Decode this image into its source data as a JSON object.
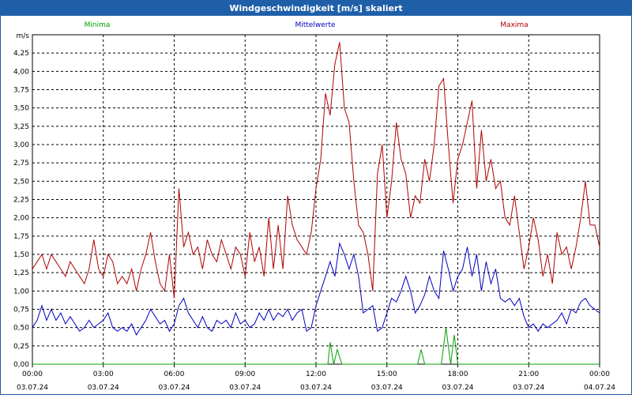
{
  "window": {
    "title": "Windgeschwindigkeit [m/s] skaliert"
  },
  "colors": {
    "minima": "#00a000",
    "mittel": "#0000c0",
    "maxima": "#b00000",
    "grid": "#000000",
    "title_bar": "#1f5fa8"
  },
  "chart_data": {
    "type": "line",
    "ylabel": "m/s",
    "ylim": [
      0,
      4.5
    ],
    "y_ticks": [
      "0,00",
      "0,25",
      "0,50",
      "0,75",
      "1,00",
      "1,25",
      "1,50",
      "1,75",
      "2,00",
      "2,25",
      "2,50",
      "2,75",
      "3,00",
      "3,25",
      "3,50",
      "3,75",
      "4,00",
      "4,25"
    ],
    "x_range_hours": [
      0,
      24
    ],
    "x_ticks": [
      {
        "time": "00:00",
        "date": "03.07.24"
      },
      {
        "time": "03:00",
        "date": "03.07.24"
      },
      {
        "time": "06:00",
        "date": "03.07.24"
      },
      {
        "time": "09:00",
        "date": "03.07.24"
      },
      {
        "time": "12:00",
        "date": "03.07.24"
      },
      {
        "time": "15:00",
        "date": "03.07.24"
      },
      {
        "time": "18:00",
        "date": "03.07.24"
      },
      {
        "time": "21:00",
        "date": "03.07.24"
      },
      {
        "time": "00:00",
        "date": "04.07.24"
      }
    ],
    "grid": true,
    "legend_placement": "top",
    "series": [
      {
        "name": "Minima",
        "color": "#00a000",
        "points": [
          [
            0,
            0
          ],
          [
            12.5,
            0
          ],
          [
            12.6,
            0.3
          ],
          [
            12.75,
            0
          ],
          [
            12.9,
            0.2
          ],
          [
            13.1,
            0
          ],
          [
            16.3,
            0
          ],
          [
            16.45,
            0.2
          ],
          [
            16.6,
            0
          ],
          [
            17.3,
            0
          ],
          [
            17.5,
            0.5
          ],
          [
            17.7,
            0
          ],
          [
            17.85,
            0.4
          ],
          [
            18.0,
            0
          ],
          [
            24,
            0
          ]
        ]
      },
      {
        "name": "Mittelwerte",
        "color": "#0000c0",
        "points": [
          [
            0,
            0.5
          ],
          [
            0.2,
            0.6
          ],
          [
            0.4,
            0.8
          ],
          [
            0.6,
            0.6
          ],
          [
            0.8,
            0.75
          ],
          [
            1.0,
            0.6
          ],
          [
            1.2,
            0.7
          ],
          [
            1.4,
            0.55
          ],
          [
            1.6,
            0.65
          ],
          [
            1.8,
            0.55
          ],
          [
            2.0,
            0.45
          ],
          [
            2.2,
            0.5
          ],
          [
            2.4,
            0.6
          ],
          [
            2.6,
            0.5
          ],
          [
            2.8,
            0.55
          ],
          [
            3.0,
            0.6
          ],
          [
            3.2,
            0.7
          ],
          [
            3.4,
            0.5
          ],
          [
            3.6,
            0.45
          ],
          [
            3.8,
            0.5
          ],
          [
            4.0,
            0.45
          ],
          [
            4.2,
            0.55
          ],
          [
            4.4,
            0.4
          ],
          [
            4.6,
            0.5
          ],
          [
            4.8,
            0.6
          ],
          [
            5.0,
            0.75
          ],
          [
            5.2,
            0.65
          ],
          [
            5.4,
            0.55
          ],
          [
            5.6,
            0.6
          ],
          [
            5.8,
            0.45
          ],
          [
            6.0,
            0.55
          ],
          [
            6.2,
            0.8
          ],
          [
            6.4,
            0.9
          ],
          [
            6.6,
            0.7
          ],
          [
            6.8,
            0.6
          ],
          [
            7.0,
            0.5
          ],
          [
            7.2,
            0.65
          ],
          [
            7.4,
            0.5
          ],
          [
            7.6,
            0.45
          ],
          [
            7.8,
            0.6
          ],
          [
            8.0,
            0.55
          ],
          [
            8.2,
            0.6
          ],
          [
            8.4,
            0.5
          ],
          [
            8.6,
            0.7
          ],
          [
            8.8,
            0.55
          ],
          [
            9.0,
            0.6
          ],
          [
            9.2,
            0.5
          ],
          [
            9.4,
            0.55
          ],
          [
            9.6,
            0.7
          ],
          [
            9.8,
            0.6
          ],
          [
            10.0,
            0.75
          ],
          [
            10.2,
            0.6
          ],
          [
            10.4,
            0.7
          ],
          [
            10.6,
            0.65
          ],
          [
            10.8,
            0.75
          ],
          [
            11.0,
            0.6
          ],
          [
            11.2,
            0.7
          ],
          [
            11.4,
            0.75
          ],
          [
            11.6,
            0.45
          ],
          [
            11.8,
            0.5
          ],
          [
            12.0,
            0.8
          ],
          [
            12.2,
            1.0
          ],
          [
            12.4,
            1.2
          ],
          [
            12.6,
            1.4
          ],
          [
            12.8,
            1.2
          ],
          [
            13.0,
            1.65
          ],
          [
            13.2,
            1.5
          ],
          [
            13.4,
            1.3
          ],
          [
            13.6,
            1.5
          ],
          [
            13.8,
            1.2
          ],
          [
            14.0,
            0.7
          ],
          [
            14.2,
            0.75
          ],
          [
            14.4,
            0.8
          ],
          [
            14.6,
            0.45
          ],
          [
            14.8,
            0.5
          ],
          [
            15.0,
            0.7
          ],
          [
            15.2,
            0.9
          ],
          [
            15.4,
            0.85
          ],
          [
            15.6,
            1.0
          ],
          [
            15.8,
            1.2
          ],
          [
            16.0,
            1.0
          ],
          [
            16.2,
            0.7
          ],
          [
            16.4,
            0.8
          ],
          [
            16.6,
            0.95
          ],
          [
            16.8,
            1.2
          ],
          [
            17.0,
            1.0
          ],
          [
            17.2,
            0.9
          ],
          [
            17.4,
            1.55
          ],
          [
            17.6,
            1.3
          ],
          [
            17.8,
            1.0
          ],
          [
            18.0,
            1.2
          ],
          [
            18.2,
            1.3
          ],
          [
            18.4,
            1.6
          ],
          [
            18.6,
            1.2
          ],
          [
            18.8,
            1.5
          ],
          [
            19.0,
            1.0
          ],
          [
            19.2,
            1.4
          ],
          [
            19.4,
            1.1
          ],
          [
            19.6,
            1.3
          ],
          [
            19.8,
            0.9
          ],
          [
            20.0,
            0.85
          ],
          [
            20.2,
            0.9
          ],
          [
            20.4,
            0.8
          ],
          [
            20.6,
            0.9
          ],
          [
            20.8,
            0.65
          ],
          [
            21.0,
            0.5
          ],
          [
            21.2,
            0.55
          ],
          [
            21.4,
            0.45
          ],
          [
            21.6,
            0.55
          ],
          [
            21.8,
            0.5
          ],
          [
            22.0,
            0.55
          ],
          [
            22.2,
            0.6
          ],
          [
            22.4,
            0.7
          ],
          [
            22.6,
            0.55
          ],
          [
            22.8,
            0.75
          ],
          [
            23.0,
            0.7
          ],
          [
            23.2,
            0.85
          ],
          [
            23.4,
            0.9
          ],
          [
            23.6,
            0.8
          ],
          [
            23.8,
            0.75
          ],
          [
            24.0,
            0.7
          ]
        ]
      },
      {
        "name": "Maxima",
        "color": "#b00000",
        "points": [
          [
            0,
            1.3
          ],
          [
            0.2,
            1.4
          ],
          [
            0.4,
            1.5
          ],
          [
            0.6,
            1.3
          ],
          [
            0.8,
            1.5
          ],
          [
            1.0,
            1.4
          ],
          [
            1.2,
            1.3
          ],
          [
            1.4,
            1.2
          ],
          [
            1.6,
            1.4
          ],
          [
            1.8,
            1.3
          ],
          [
            2.0,
            1.2
          ],
          [
            2.2,
            1.1
          ],
          [
            2.4,
            1.3
          ],
          [
            2.6,
            1.7
          ],
          [
            2.8,
            1.3
          ],
          [
            3.0,
            1.2
          ],
          [
            3.2,
            1.5
          ],
          [
            3.4,
            1.4
          ],
          [
            3.6,
            1.1
          ],
          [
            3.8,
            1.2
          ],
          [
            4.0,
            1.1
          ],
          [
            4.2,
            1.3
          ],
          [
            4.4,
            1.0
          ],
          [
            4.6,
            1.3
          ],
          [
            4.8,
            1.5
          ],
          [
            5.0,
            1.8
          ],
          [
            5.2,
            1.4
          ],
          [
            5.4,
            1.1
          ],
          [
            5.6,
            1.0
          ],
          [
            5.8,
            1.5
          ],
          [
            6.0,
            0.9
          ],
          [
            6.2,
            2.4
          ],
          [
            6.4,
            1.6
          ],
          [
            6.6,
            1.8
          ],
          [
            6.8,
            1.5
          ],
          [
            7.0,
            1.6
          ],
          [
            7.2,
            1.3
          ],
          [
            7.4,
            1.7
          ],
          [
            7.6,
            1.5
          ],
          [
            7.8,
            1.4
          ],
          [
            8.0,
            1.7
          ],
          [
            8.2,
            1.5
          ],
          [
            8.4,
            1.3
          ],
          [
            8.6,
            1.6
          ],
          [
            8.8,
            1.5
          ],
          [
            9.0,
            1.2
          ],
          [
            9.2,
            1.8
          ],
          [
            9.4,
            1.4
          ],
          [
            9.6,
            1.6
          ],
          [
            9.8,
            1.2
          ],
          [
            10.0,
            2.0
          ],
          [
            10.2,
            1.3
          ],
          [
            10.4,
            1.9
          ],
          [
            10.6,
            1.3
          ],
          [
            10.8,
            2.3
          ],
          [
            11.0,
            1.9
          ],
          [
            11.2,
            1.7
          ],
          [
            11.4,
            1.6
          ],
          [
            11.6,
            1.5
          ],
          [
            11.8,
            1.8
          ],
          [
            12.0,
            2.4
          ],
          [
            12.2,
            2.8
          ],
          [
            12.4,
            3.7
          ],
          [
            12.6,
            3.4
          ],
          [
            12.8,
            4.1
          ],
          [
            13.0,
            4.4
          ],
          [
            13.2,
            3.5
          ],
          [
            13.4,
            3.3
          ],
          [
            13.6,
            2.5
          ],
          [
            13.8,
            1.9
          ],
          [
            14.0,
            1.8
          ],
          [
            14.2,
            1.5
          ],
          [
            14.4,
            1.0
          ],
          [
            14.6,
            2.6
          ],
          [
            14.8,
            3.0
          ],
          [
            15.0,
            2.0
          ],
          [
            15.2,
            2.5
          ],
          [
            15.4,
            3.3
          ],
          [
            15.6,
            2.8
          ],
          [
            15.8,
            2.6
          ],
          [
            16.0,
            2.0
          ],
          [
            16.2,
            2.3
          ],
          [
            16.4,
            2.2
          ],
          [
            16.6,
            2.8
          ],
          [
            16.8,
            2.5
          ],
          [
            17.0,
            3.0
          ],
          [
            17.2,
            3.8
          ],
          [
            17.4,
            3.9
          ],
          [
            17.6,
            3.0
          ],
          [
            17.8,
            2.2
          ],
          [
            18.0,
            2.8
          ],
          [
            18.2,
            3.0
          ],
          [
            18.4,
            3.3
          ],
          [
            18.6,
            3.6
          ],
          [
            18.8,
            2.4
          ],
          [
            19.0,
            3.2
          ],
          [
            19.2,
            2.5
          ],
          [
            19.4,
            2.8
          ],
          [
            19.6,
            2.4
          ],
          [
            19.8,
            2.5
          ],
          [
            20.0,
            2.0
          ],
          [
            20.2,
            1.9
          ],
          [
            20.4,
            2.3
          ],
          [
            20.6,
            1.8
          ],
          [
            20.8,
            1.3
          ],
          [
            21.0,
            1.6
          ],
          [
            21.2,
            2.0
          ],
          [
            21.4,
            1.7
          ],
          [
            21.6,
            1.2
          ],
          [
            21.8,
            1.5
          ],
          [
            22.0,
            1.1
          ],
          [
            22.2,
            1.8
          ],
          [
            22.4,
            1.5
          ],
          [
            22.6,
            1.6
          ],
          [
            22.8,
            1.3
          ],
          [
            23.0,
            1.6
          ],
          [
            23.2,
            2.0
          ],
          [
            23.4,
            2.5
          ],
          [
            23.6,
            1.9
          ],
          [
            23.8,
            1.9
          ],
          [
            24.0,
            1.6
          ]
        ]
      }
    ]
  }
}
